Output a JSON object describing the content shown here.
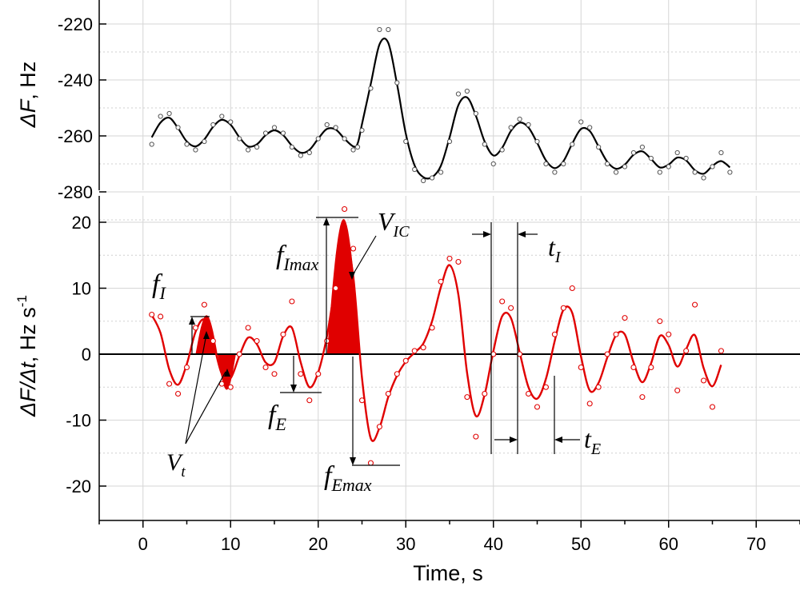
{
  "chart_data": [
    {
      "type": "line",
      "panel": "top",
      "xlabel": "",
      "ylabel_italic": "ΔF",
      "ylabel_rest": ", Hz",
      "ylim": [
        -283,
        -210
      ],
      "yticks": [
        -220,
        -240,
        -260,
        -280
      ],
      "xlim": [
        -5,
        75
      ],
      "grid": true,
      "color": "#000000",
      "marker_color": "#555555",
      "series": [
        {
          "x": [
            1,
            2,
            3,
            4,
            5,
            6,
            7,
            8,
            9,
            10,
            11,
            12,
            13,
            14,
            15,
            16,
            17,
            18,
            19,
            20,
            21,
            22,
            23,
            24,
            24.5,
            25,
            26,
            27,
            28,
            29,
            30,
            31,
            32,
            33,
            34,
            35,
            36,
            37,
            38,
            39,
            40,
            41,
            42,
            43,
            44,
            45,
            46,
            47,
            48,
            49,
            50,
            51,
            52,
            53,
            54,
            55,
            56,
            57,
            58,
            59,
            60,
            61,
            62,
            63,
            64,
            65,
            66,
            67
          ],
          "y": [
            -263,
            -253,
            -252,
            -257,
            -263,
            -265,
            -262,
            -256,
            -253,
            -255,
            -261,
            -265,
            -264,
            -259,
            -257,
            -259,
            -264,
            -267,
            -266,
            -261,
            -256,
            -257,
            -261,
            -265,
            -264,
            -258,
            -243,
            -222,
            -222,
            -241,
            -262,
            -272,
            -276,
            -275,
            -273,
            -262,
            -245,
            -244,
            -252,
            -263,
            -270,
            -265,
            -257,
            -254,
            -256,
            -262,
            -270,
            -273,
            -270,
            -263,
            -255,
            -257,
            -264,
            -270,
            -273,
            -271,
            -266,
            -264,
            -268,
            -273,
            -271,
            -266,
            -268,
            -273,
            -275,
            -271,
            -266,
            -273
          ]
        }
      ]
    },
    {
      "type": "line",
      "panel": "bottom",
      "xlabel": "Time, s",
      "ylabel_italic": "ΔF/Δt",
      "ylabel_rest": ", Hz s",
      "ylabel_sup": "-1",
      "ylim": [
        -25,
        25
      ],
      "yticks": [
        20,
        10,
        0,
        -10,
        -20
      ],
      "xlim": [
        -5,
        75
      ],
      "xticks": [
        0,
        10,
        20,
        30,
        40,
        50,
        60,
        70
      ],
      "grid": true,
      "color": "#e00000",
      "series": [
        {
          "x": [
            1,
            2,
            3,
            4,
            5,
            6,
            7,
            8,
            9,
            10,
            11,
            12,
            13,
            14,
            15,
            16,
            17,
            18,
            19,
            20,
            21,
            22,
            23,
            24,
            25,
            26,
            27,
            28,
            29,
            30,
            31,
            32,
            33,
            34,
            35,
            36,
            37,
            38,
            39,
            40,
            41,
            42,
            43,
            44,
            45,
            46,
            47,
            48,
            49,
            50,
            51,
            52,
            53,
            54,
            55,
            56,
            57,
            58,
            59,
            60,
            61,
            62,
            63,
            64,
            65,
            66
          ],
          "y": [
            6,
            5.7,
            -4.5,
            -6,
            -2,
            4,
            7.5,
            2,
            -4.5,
            -5,
            0,
            4,
            2,
            -2,
            -3,
            3,
            8,
            -3,
            -7,
            -3,
            2,
            10,
            22,
            16,
            -7,
            -16.5,
            -11,
            -6,
            -3,
            -1,
            0.5,
            1,
            4,
            11,
            14.5,
            14,
            -6.5,
            -12.5,
            -6,
            0,
            8,
            7,
            0,
            -6,
            -8,
            -5,
            3,
            7,
            10,
            -2,
            -7.5,
            -5,
            0,
            3,
            5.5,
            -2,
            -6.5,
            -2,
            5,
            3,
            -5.5,
            0.5,
            7.5,
            -4,
            -8,
            0.5
          ]
        }
      ]
    }
  ],
  "annotations": {
    "f_I": "f",
    "f_I_sub": "I",
    "f_E": "f",
    "f_E_sub": "E",
    "f_Imax": "f",
    "f_Imax_sub": "Imax",
    "f_Emax": "f",
    "f_Emax_sub": "Emax",
    "V_IC": "V",
    "V_IC_sub": "IC",
    "V_t": "V",
    "V_t_sub": "t",
    "t_I": "t",
    "t_I_sub": "I",
    "t_E": "t",
    "t_E_sub": "E"
  },
  "colors": {
    "red": "#e00000",
    "black": "#000000",
    "grid": "#cccccc"
  }
}
